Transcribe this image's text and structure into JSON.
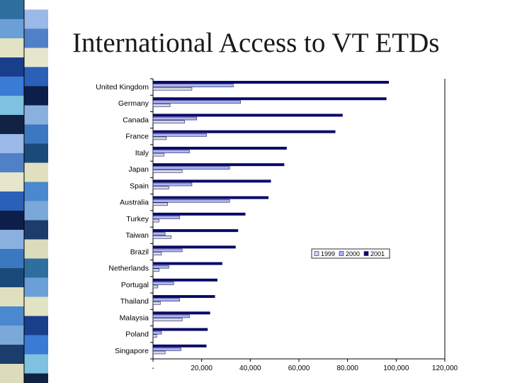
{
  "slide": {
    "title": "International Access to VT ETDs"
  },
  "colors": {
    "s1999": "#d4d4e8",
    "s2000": "#aab4f2",
    "s2001": "#0a0a6a",
    "strip": [
      "#2f6f9f",
      "#6a9fd8",
      "#e2e2c4",
      "#1a3f8a",
      "#3a7bd5",
      "#7ec1e0",
      "#112244",
      "#9ab8e8",
      "#5080c8",
      "#e6e6cc",
      "#2a60b8",
      "#0e1e4a",
      "#8ab0e0",
      "#3c78c0",
      "#1a4a7a",
      "#e0e0c0",
      "#4a88d0",
      "#7aa8d8",
      "#1c3c6c",
      "#dcdcbc"
    ]
  },
  "chart_data": {
    "type": "bar",
    "orientation": "horizontal",
    "title": "",
    "xlabel": "",
    "ylabel": "",
    "xlim": [
      0,
      120000
    ],
    "x_ticks": [
      "-",
      "20,000",
      "40,000",
      "60,000",
      "80,000",
      "100,000",
      "120,000"
    ],
    "x_tick_values": [
      0,
      20000,
      40000,
      60000,
      80000,
      100000,
      120000
    ],
    "legend_position": "right-middle",
    "categories": [
      "United Kingdom",
      "Germany",
      "Canada",
      "France",
      "Italy",
      "Japan",
      "Spain",
      "Australia",
      "Turkey",
      "Taiwan",
      "Brazil",
      "Netherlands",
      "Portugal",
      "Thailand",
      "Malaysia",
      "Poland",
      "Singapore"
    ],
    "series": [
      {
        "name": "1999",
        "color_key": "s1999",
        "values": [
          16000,
          7000,
          13000,
          5500,
          4500,
          12000,
          6500,
          6000,
          2500,
          7500,
          3500,
          2500,
          2000,
          3000,
          12000,
          1500,
          5000
        ]
      },
      {
        "name": "2000",
        "color_key": "s2000",
        "values": [
          33000,
          36000,
          18000,
          22000,
          15000,
          31500,
          16000,
          31500,
          11000,
          5000,
          12000,
          6500,
          8500,
          11000,
          15000,
          3500,
          11500
        ]
      },
      {
        "name": "2001",
        "color_key": "s2001",
        "values": [
          97000,
          96000,
          78000,
          75000,
          55000,
          54000,
          48500,
          47500,
          38000,
          35000,
          34000,
          28500,
          26500,
          25500,
          23500,
          22500,
          22000
        ]
      }
    ]
  }
}
